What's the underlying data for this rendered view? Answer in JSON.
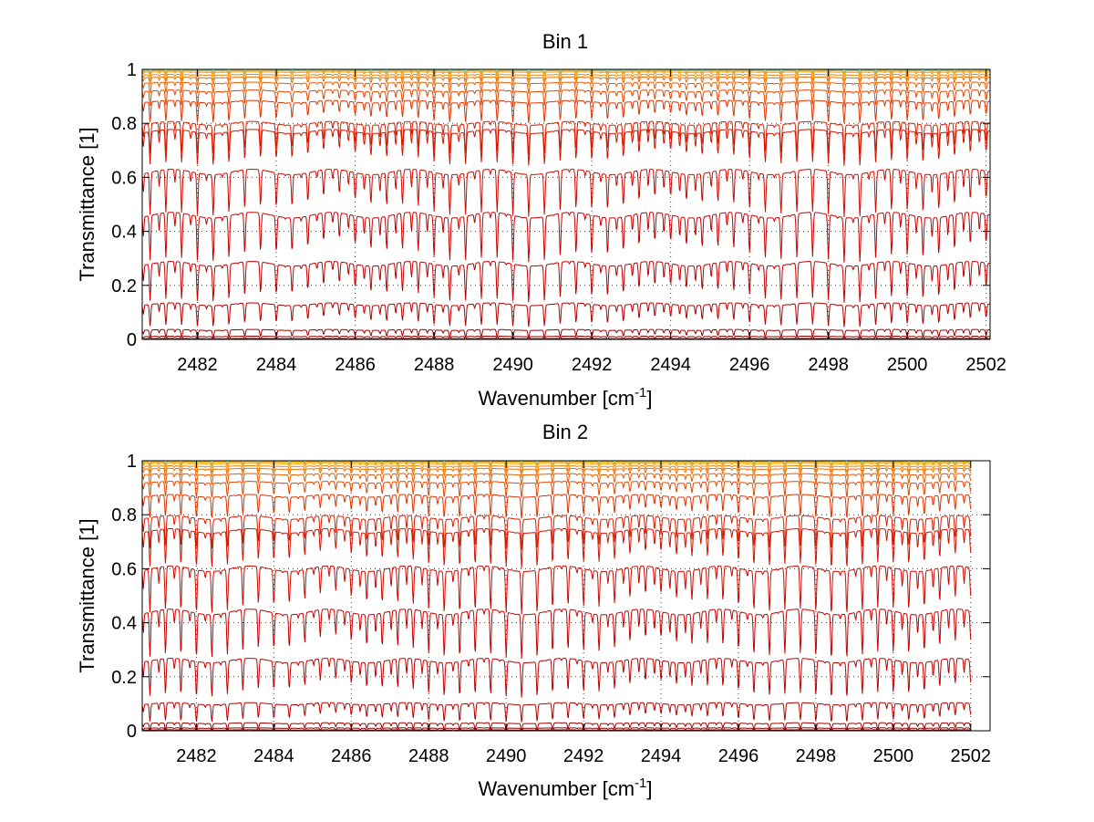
{
  "chart_data": [
    {
      "type": "line",
      "title": "Bin 1",
      "xlabel": "Wavenumber [cm",
      "xlabel_sup": "-1",
      "xlabel_tail": "]",
      "ylabel": "Transmittance [1]",
      "xlim": [
        2480.6,
        2502.1
      ],
      "ylim": [
        0,
        1
      ],
      "xticks": [
        2482,
        2484,
        2486,
        2488,
        2490,
        2492,
        2494,
        2496,
        2498,
        2500,
        2502
      ],
      "yticks": [
        0,
        0.2,
        0.4,
        0.6,
        0.8,
        1
      ],
      "ytick_labels": [
        "0",
        "0.2",
        "0.4",
        "0.6",
        "0.8",
        "1"
      ],
      "grid": true,
      "line_spacing_cm": 0.4,
      "series_baselines": [
        0.003,
        0.011,
        0.035,
        0.13,
        0.28,
        0.46,
        0.62,
        0.77,
        0.8,
        0.88,
        0.92,
        0.95,
        0.97,
        0.98,
        0.99,
        0.995,
        0.998,
        0.999
      ],
      "series_colors": [
        "#7a0000",
        "#8b0000",
        "#a00000",
        "#b40000",
        "#bf0000",
        "#c80000",
        "#cc0a00",
        "#d21400",
        "#d81e00",
        "#de3200",
        "#e44600",
        "#ea5a00",
        "#ef6e00",
        "#f48200",
        "#f89600",
        "#f2a800",
        "#d9b400",
        "#6fc8b4"
      ],
      "series_data": "Dense spectral transmittance lines: each series oscillates with regular absorption dips across the band (dip depth grows toward mid-range transmittance)."
    },
    {
      "type": "line",
      "title": "Bin 2",
      "xlabel": "Wavenumber [cm",
      "xlabel_sup": "-1",
      "xlabel_tail": "]",
      "ylabel": "Transmittance [1]",
      "xlim": [
        2480.6,
        2502.5
      ],
      "ylim": [
        0,
        1
      ],
      "xticks": [
        2482,
        2484,
        2486,
        2488,
        2490,
        2492,
        2494,
        2496,
        2498,
        2500,
        2502
      ],
      "yticks": [
        0,
        0.2,
        0.4,
        0.6,
        0.8,
        1
      ],
      "ytick_labels": [
        "0",
        "0.2",
        "0.4",
        "0.6",
        "0.8",
        "1"
      ],
      "grid": true,
      "data_xmax": 2502.0,
      "line_spacing_cm": 0.4,
      "series_baselines": [
        0.003,
        0.01,
        0.028,
        0.1,
        0.26,
        0.44,
        0.6,
        0.74,
        0.79,
        0.87,
        0.92,
        0.95,
        0.97,
        0.98,
        0.99,
        0.995,
        0.998,
        0.999
      ],
      "series_colors": [
        "#7a0000",
        "#8b0000",
        "#a00000",
        "#b40000",
        "#bf0000",
        "#c80000",
        "#cc0a00",
        "#d21400",
        "#d81e00",
        "#de3200",
        "#e44600",
        "#ea5a00",
        "#ef6e00",
        "#f48200",
        "#f89600",
        "#f2a800",
        "#d9b400",
        "#6fc8b4"
      ],
      "series_data": "Dense spectral transmittance lines: each series oscillates with regular absorption dips across the band (dip depth grows toward mid-range transmittance)."
    }
  ]
}
